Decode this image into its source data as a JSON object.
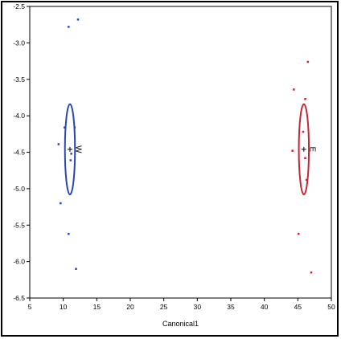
{
  "chart_data": {
    "type": "scatter",
    "xlabel": "Canonical1",
    "ylabel": "",
    "xlim": [
      5,
      50
    ],
    "ylim": [
      -6.5,
      -2.5
    ],
    "xticks": [
      5,
      10,
      15,
      20,
      25,
      30,
      35,
      40,
      45,
      50
    ],
    "yticks": [
      -2.5,
      -3.0,
      -3.5,
      -4.0,
      -4.5,
      -5.0,
      -5.5,
      -6.0,
      -6.5
    ],
    "grid": false,
    "groups": [
      {
        "label": "W",
        "color": "#2a46b4",
        "center": [
          11.0,
          -4.46
        ],
        "ellipse": {
          "rx": 0.75,
          "ry": 0.62
        },
        "points": [
          [
            12.2,
            -2.68
          ],
          [
            10.8,
            -2.78
          ],
          [
            10.2,
            -4.16
          ],
          [
            11.7,
            -4.16
          ],
          [
            9.3,
            -4.39
          ],
          [
            11.2,
            -4.52
          ],
          [
            11.1,
            -4.61
          ],
          [
            9.6,
            -5.2
          ],
          [
            10.8,
            -5.62
          ],
          [
            11.9,
            -6.1
          ]
        ]
      },
      {
        "label": "E",
        "color": "#c0283c",
        "center": [
          45.9,
          -4.46
        ],
        "ellipse": {
          "rx": 0.75,
          "ry": 0.62
        },
        "points": [
          [
            46.5,
            -3.26
          ],
          [
            44.4,
            -3.64
          ],
          [
            46.1,
            -3.77
          ],
          [
            45.8,
            -4.22
          ],
          [
            44.2,
            -4.48
          ],
          [
            46.1,
            -4.58
          ],
          [
            46.3,
            -4.88
          ],
          [
            45.1,
            -5.62
          ],
          [
            47.0,
            -6.15
          ]
        ]
      }
    ]
  }
}
